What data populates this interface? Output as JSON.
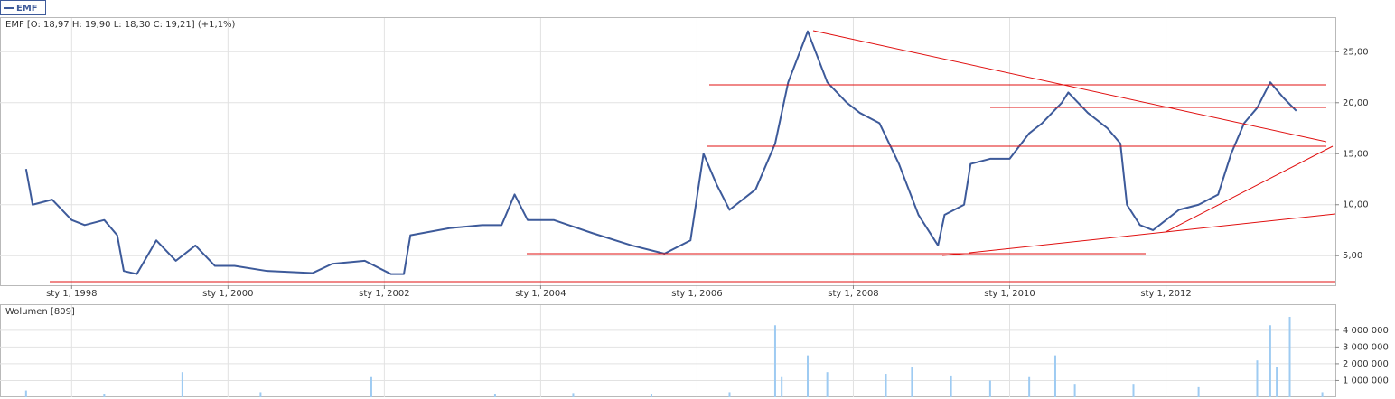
{
  "chart_data": [
    {
      "type": "line",
      "title": "EMF [O: 18,97  H: 19,90  L: 18,30  C: 19,21] (+1,1%)",
      "x": [
        "1997-06",
        "1997-07",
        "1997-10",
        "1998-01",
        "1998-03",
        "1998-06",
        "1998-08",
        "1998-09",
        "1998-11",
        "1999-02",
        "1999-05",
        "1999-08",
        "1999-11",
        "2000-02",
        "2000-07",
        "2001-02",
        "2001-05",
        "2001-10",
        "2002-02",
        "2002-04",
        "2002-05",
        "2002-11",
        "2003-04",
        "2003-07",
        "2003-09",
        "2003-11",
        "2004-03",
        "2004-09",
        "2005-03",
        "2005-08",
        "2005-12",
        "2006-02",
        "2006-04",
        "2006-06",
        "2006-10",
        "2007-01",
        "2007-03",
        "2007-06",
        "2007-09",
        "2007-12",
        "2008-02",
        "2008-05",
        "2008-08",
        "2008-11",
        "2009-02",
        "2009-03",
        "2009-06",
        "2009-07",
        "2009-10",
        "2010-01",
        "2010-04",
        "2010-06",
        "2010-09",
        "2010-10",
        "2011-01",
        "2011-04",
        "2011-06",
        "2011-07",
        "2011-09",
        "2011-11",
        "2012-01",
        "2012-03",
        "2012-06",
        "2012-09",
        "2012-11",
        "2013-01",
        "2013-03",
        "2013-05",
        "2013-07",
        "2013-09"
      ],
      "series": [
        {
          "name": "EMF",
          "color": "#3d5a9a",
          "values": [
            13.5,
            10.0,
            10.5,
            8.5,
            8.0,
            8.5,
            7.0,
            3.5,
            3.2,
            6.5,
            4.5,
            6.0,
            4.0,
            4.0,
            3.5,
            3.3,
            4.2,
            4.5,
            3.2,
            3.2,
            7.0,
            7.7,
            8.0,
            8.0,
            11.0,
            8.5,
            8.5,
            7.2,
            6.0,
            5.2,
            6.5,
            15.0,
            12.0,
            9.5,
            11.5,
            16.0,
            22.0,
            27.0,
            22.0,
            20.0,
            19.0,
            18.0,
            14.0,
            9.0,
            6.0,
            9.0,
            10.0,
            14.0,
            14.5,
            14.5,
            17.0,
            18.0,
            20.0,
            21.0,
            19.0,
            17.5,
            16.0,
            10.0,
            8.0,
            7.5,
            8.5,
            9.5,
            10.0,
            11.0,
            15.0,
            18.0,
            19.5,
            22.0,
            20.5,
            19.2
          ]
        }
      ],
      "xlim": [
        "1997-02",
        "2014-03"
      ],
      "xticks": [
        {
          "value": "1998-01",
          "label": "sty 1, 1998"
        },
        {
          "value": "2000-01",
          "label": "sty 1, 2000"
        },
        {
          "value": "2002-01",
          "label": "sty 1, 2002"
        },
        {
          "value": "2004-01",
          "label": "sty 1, 2004"
        },
        {
          "value": "2006-01",
          "label": "sty 1, 2006"
        },
        {
          "value": "2008-01",
          "label": "sty 1, 2008"
        },
        {
          "value": "2010-01",
          "label": "sty 1, 2010"
        },
        {
          "value": "2012-01",
          "label": "sty 1, 2012"
        }
      ],
      "ylim": [
        2.1,
        28.3
      ],
      "yticks": [
        {
          "value": 5,
          "label": "5,00"
        },
        {
          "value": 10,
          "label": "10,00"
        },
        {
          "value": 15,
          "label": "15,00"
        },
        {
          "value": 20,
          "label": "20,00"
        },
        {
          "value": 25,
          "label": "25,00"
        }
      ],
      "grid": true
    },
    {
      "type": "bar",
      "title": "Wolumen [809]",
      "x": [
        "1997-06",
        "1998-06",
        "1999-06",
        "2000-06",
        "2001-11",
        "2003-06",
        "2004-06",
        "2005-06",
        "2006-06",
        "2007-01",
        "2007-02",
        "2007-06",
        "2007-09",
        "2008-06",
        "2008-10",
        "2009-04",
        "2009-10",
        "2010-04",
        "2010-08",
        "2010-11",
        "2011-08",
        "2012-06",
        "2013-03",
        "2013-05",
        "2013-06",
        "2013-08",
        "2014-01"
      ],
      "values": [
        400000,
        200000,
        1500000,
        300000,
        1200000,
        200000,
        250000,
        200000,
        300000,
        4300000,
        1200000,
        2500000,
        1500000,
        1400000,
        1800000,
        1300000,
        1000000,
        1200000,
        2500000,
        800000,
        800000,
        600000,
        2200000,
        4300000,
        1800000,
        4800000,
        300000
      ],
      "color": "#9ecbf2",
      "ylim": [
        0,
        5500000
      ],
      "yticks": [
        {
          "value": 1000000,
          "label": "1 000 000"
        },
        {
          "value": 2000000,
          "label": "2 000 000"
        },
        {
          "value": 3000000,
          "label": "3 000 000"
        },
        {
          "value": 4000000,
          "label": "4 000 000"
        }
      ],
      "grid": true
    }
  ]
}
